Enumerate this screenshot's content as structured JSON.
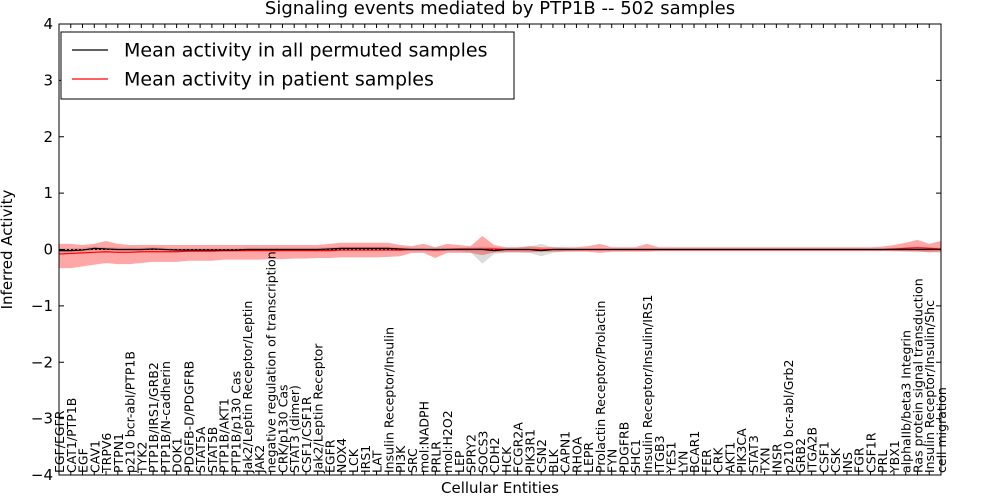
{
  "chart_data": {
    "type": "line",
    "title": "Signaling events mediated by PTP1B -- 502 samples",
    "xlabel": "Cellular Entities",
    "ylabel": "Inferred Activity",
    "ylim": [
      -4,
      4
    ],
    "yticks": [
      -4,
      -3,
      -2,
      -1,
      0,
      1,
      2,
      3,
      4
    ],
    "ytick_labels": [
      "−4",
      "−3",
      "−2",
      "−1",
      "0",
      "1",
      "2",
      "3",
      "4"
    ],
    "legend": {
      "location": "top-left",
      "entries": [
        {
          "label": "Mean activity in all permuted samples",
          "color": "#000000"
        },
        {
          "label": "Mean activity in patient samples",
          "color": "#ff0000"
        }
      ]
    },
    "categories": [
      "EGF/EGFR",
      "CAT1/PTP1B",
      "EGF",
      "CAV1",
      "TRPV6",
      "PTPN1",
      "p210 bcr-abl/PTP1B",
      "TYK2",
      "PTP1B/IRS1/GRB2",
      "PTP1B/N-cadherin",
      "DOK1",
      "PDGFB-D/PDGFRB",
      "STAT5A",
      "STAT5B",
      "PTP1B/AKT1",
      "PTP1B/p130 Cas",
      "Jak2/Leptin Receptor/Leptin",
      "JAK2",
      "negative regulation of transcription",
      "CRK/p130 Cas",
      "STAT3 (dimer)",
      "CSF1/CSF1R",
      "Jak2/Leptin Receptor",
      "EGFR",
      "NOX4",
      "LCK",
      "IRS1",
      "LAT",
      "Insulin Receptor/Insulin",
      "PI3K",
      "SRC",
      "mol:NADPH",
      "PRLR",
      "mol:H2O2",
      "LEP",
      "SPRY2",
      "SOCS3",
      "CDH2",
      "HCK",
      "FCGR2A",
      "PIK3R1",
      "CSN2",
      "BLK",
      "CAPN1",
      "RHOA",
      "LEPR",
      "Prolactin Receptor/Prolactin",
      "FYN",
      "PDGFRB",
      "SHC1",
      "Insulin Receptor/Insulin/IRS1",
      "ITGB3",
      "YES1",
      "LYN",
      "BCAR1",
      "FER",
      "CRK",
      "AKT1",
      "PIK3CA",
      "STAT3",
      "TXN",
      "INSR",
      "p210 bcr-abl/Grb2",
      "GRB2",
      "ITGA2B",
      "CSF1",
      "CSK",
      "INS",
      "FGR",
      "CSF1R",
      "PRL",
      "YBX1",
      "alphaIIb/beta3 Integrin",
      "Ras protein signal transduction",
      "Insulin Receptor/Insulin/Shc",
      "cell migration"
    ],
    "series": [
      {
        "name": "Mean activity in all permuted samples",
        "color": "#000000",
        "values": [
          -0.02,
          -0.02,
          -0.01,
          0.02,
          0.01,
          0.0,
          0.0,
          0.0,
          0.01,
          0.0,
          -0.01,
          -0.01,
          -0.01,
          -0.01,
          -0.01,
          -0.01,
          0.0,
          0.0,
          0.0,
          0.0,
          0.0,
          0.0,
          0.0,
          0.01,
          0.02,
          0.02,
          0.02,
          0.02,
          0.02,
          0.01,
          0.0,
          0.0,
          0.0,
          0.0,
          0.0,
          0.0,
          0.0,
          -0.02,
          0.0,
          0.0,
          0.0,
          -0.02,
          0.0,
          0.0,
          0.0,
          0.0,
          0.0,
          0.0,
          0.0,
          0.0,
          0.0,
          0.0,
          0.0,
          0.0,
          0.0,
          0.0,
          0.0,
          0.0,
          0.0,
          0.0,
          0.0,
          0.0,
          0.0,
          0.0,
          0.0,
          0.0,
          0.0,
          0.0,
          0.0,
          0.0,
          0.0,
          0.0,
          0.0,
          0.0,
          0.0,
          0.0
        ],
        "band_lower": [
          -0.05,
          -0.05,
          -0.04,
          -0.02,
          -0.02,
          -0.03,
          -0.03,
          -0.03,
          -0.03,
          -0.03,
          -0.04,
          -0.04,
          -0.04,
          -0.04,
          -0.04,
          -0.04,
          -0.03,
          -0.03,
          -0.03,
          -0.03,
          -0.03,
          -0.03,
          -0.03,
          -0.03,
          -0.02,
          -0.02,
          -0.02,
          -0.02,
          -0.02,
          -0.03,
          -0.03,
          -0.03,
          -0.03,
          -0.03,
          -0.03,
          -0.05,
          -0.25,
          -0.08,
          -0.05,
          -0.05,
          -0.06,
          -0.12,
          -0.06,
          -0.03,
          -0.02,
          -0.02,
          -0.02,
          -0.02,
          -0.02,
          -0.02,
          -0.02,
          -0.02,
          -0.02,
          -0.02,
          -0.02,
          -0.02,
          -0.02,
          -0.02,
          -0.02,
          -0.02,
          -0.02,
          -0.02,
          -0.02,
          -0.02,
          -0.02,
          -0.02,
          -0.02,
          -0.02,
          -0.02,
          -0.02,
          -0.02,
          -0.03,
          -0.04,
          -0.05,
          -0.04,
          -0.03
        ],
        "band_upper": [
          0.02,
          0.02,
          0.03,
          0.05,
          0.04,
          0.03,
          0.03,
          0.03,
          0.04,
          0.03,
          0.02,
          0.02,
          0.02,
          0.02,
          0.02,
          0.02,
          0.03,
          0.03,
          0.03,
          0.03,
          0.03,
          0.03,
          0.03,
          0.04,
          0.05,
          0.05,
          0.05,
          0.05,
          0.05,
          0.04,
          0.03,
          0.03,
          0.03,
          0.03,
          0.03,
          0.04,
          0.05,
          0.04,
          0.03,
          0.03,
          0.05,
          0.1,
          0.04,
          0.03,
          0.02,
          0.02,
          0.02,
          0.02,
          0.02,
          0.02,
          0.02,
          0.02,
          0.02,
          0.02,
          0.02,
          0.02,
          0.02,
          0.02,
          0.02,
          0.02,
          0.02,
          0.02,
          0.02,
          0.02,
          0.02,
          0.02,
          0.02,
          0.02,
          0.02,
          0.02,
          0.02,
          0.03,
          0.04,
          0.05,
          0.04,
          0.03
        ]
      },
      {
        "name": "Mean activity in patient samples",
        "color": "#ff0000",
        "values": [
          -0.08,
          -0.07,
          -0.06,
          -0.05,
          -0.04,
          -0.05,
          -0.05,
          -0.04,
          -0.04,
          -0.04,
          -0.04,
          -0.03,
          -0.03,
          -0.03,
          -0.02,
          -0.02,
          -0.02,
          -0.02,
          -0.02,
          -0.02,
          -0.02,
          -0.02,
          -0.02,
          -0.02,
          -0.01,
          -0.01,
          -0.01,
          -0.01,
          -0.01,
          -0.01,
          0.0,
          0.0,
          -0.01,
          0.0,
          0.01,
          0.01,
          0.01,
          0.01,
          0.0,
          0.0,
          0.0,
          0.0,
          0.0,
          0.0,
          0.0,
          0.0,
          0.0,
          0.0,
          0.0,
          0.0,
          0.0,
          0.0,
          0.0,
          0.0,
          0.0,
          0.0,
          0.0,
          0.0,
          0.0,
          0.0,
          0.0,
          0.0,
          0.0,
          0.0,
          0.0,
          0.0,
          0.0,
          0.0,
          0.0,
          0.0,
          0.0,
          0.01,
          0.02,
          0.03,
          0.02,
          0.01
        ],
        "band_lower": [
          -0.33,
          -0.33,
          -0.3,
          -0.27,
          -0.24,
          -0.26,
          -0.26,
          -0.24,
          -0.22,
          -0.22,
          -0.22,
          -0.2,
          -0.2,
          -0.2,
          -0.18,
          -0.18,
          -0.18,
          -0.18,
          -0.17,
          -0.17,
          -0.16,
          -0.16,
          -0.15,
          -0.15,
          -0.14,
          -0.14,
          -0.14,
          -0.14,
          -0.13,
          -0.12,
          -0.06,
          -0.06,
          -0.15,
          -0.06,
          -0.06,
          -0.06,
          -0.1,
          -0.05,
          -0.05,
          -0.05,
          -0.05,
          -0.04,
          -0.04,
          -0.04,
          -0.04,
          -0.04,
          -0.06,
          -0.04,
          -0.04,
          -0.04,
          -0.04,
          -0.03,
          -0.03,
          -0.03,
          -0.03,
          -0.03,
          -0.03,
          -0.03,
          -0.03,
          -0.03,
          -0.03,
          -0.03,
          -0.03,
          -0.03,
          -0.03,
          -0.03,
          -0.03,
          -0.03,
          -0.03,
          -0.03,
          -0.03,
          -0.03,
          -0.03,
          -0.03,
          -0.05,
          -0.05
        ],
        "band_upper": [
          0.1,
          0.1,
          0.08,
          0.1,
          0.15,
          0.1,
          0.08,
          0.08,
          0.08,
          0.08,
          0.08,
          0.08,
          0.08,
          0.08,
          0.08,
          0.08,
          0.08,
          0.08,
          0.08,
          0.08,
          0.08,
          0.08,
          0.08,
          0.1,
          0.12,
          0.12,
          0.12,
          0.12,
          0.12,
          0.08,
          0.06,
          0.1,
          0.04,
          0.1,
          0.08,
          0.06,
          0.24,
          0.08,
          0.04,
          0.04,
          0.06,
          0.04,
          0.04,
          0.04,
          0.04,
          0.06,
          0.1,
          0.04,
          0.04,
          0.04,
          0.1,
          0.04,
          0.04,
          0.04,
          0.04,
          0.04,
          0.04,
          0.04,
          0.04,
          0.04,
          0.04,
          0.04,
          0.04,
          0.04,
          0.04,
          0.04,
          0.04,
          0.04,
          0.04,
          0.04,
          0.05,
          0.08,
          0.12,
          0.17,
          0.1,
          0.15
        ]
      }
    ],
    "colors": {
      "permuted_band": "#bfbfbf",
      "patient_band": "#ff0000",
      "zero_line": "#000000"
    }
  }
}
